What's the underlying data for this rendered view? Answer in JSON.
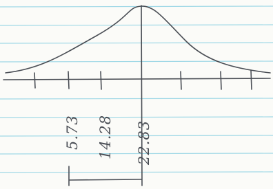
{
  "labels": [
    "5.73",
    "14.28",
    "22.83"
  ]
}
